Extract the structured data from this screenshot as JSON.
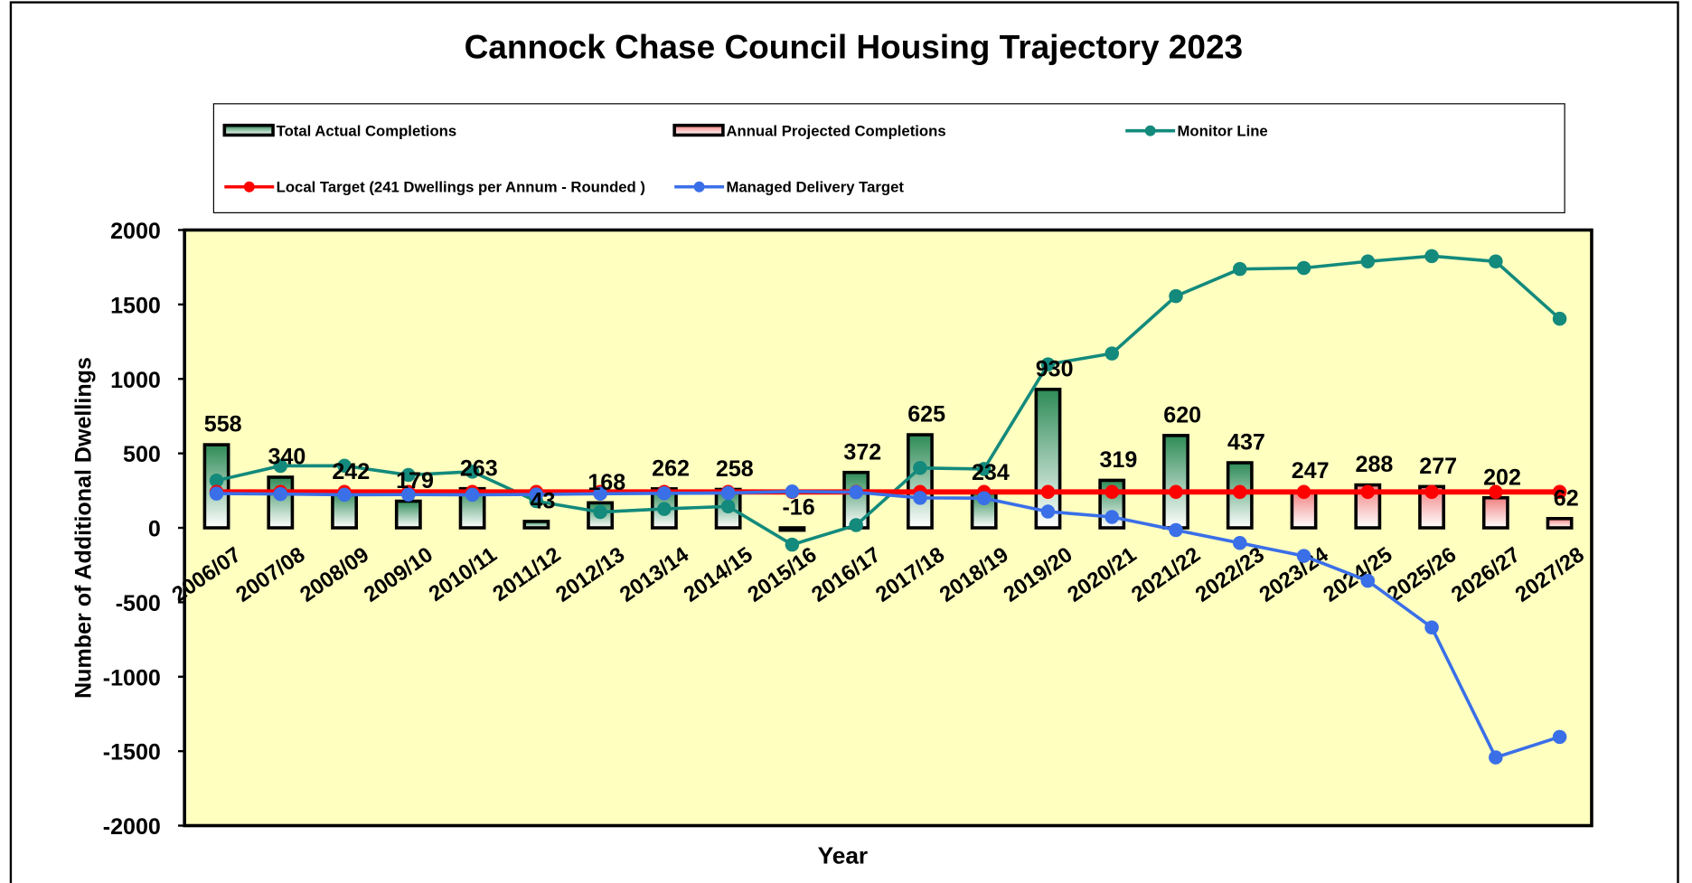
{
  "chart_data": {
    "type": "bar",
    "title": "Cannock Chase Council Housing Trajectory 2023",
    "x_label": "Year",
    "y_label": "Number of Additional Dwellings",
    "categories": [
      "2006/07",
      "2007/08",
      "2008/09",
      "2009/10",
      "2010/11",
      "2011/12",
      "2012/13",
      "2013/14",
      "2014/15",
      "2015/16",
      "2016/17",
      "2017/18",
      "2018/19",
      "2019/20",
      "2020/21",
      "2021/22",
      "2022/23",
      "2023/24",
      "2024/25",
      "2025/26",
      "2026/27",
      "2027/28"
    ],
    "ylim": [
      -2000,
      2000
    ],
    "yticks": [
      -2000,
      -1500,
      -1000,
      -500,
      0,
      500,
      1000,
      1500,
      2000
    ],
    "background": "#ffffc0",
    "series": [
      {
        "name": "Total Actual Completions",
        "type": "bar",
        "color": "#2e8b57",
        "values": [
          558,
          340,
          242,
          179,
          263,
          43,
          168,
          262,
          258,
          -16,
          372,
          625,
          234,
          930,
          319,
          620,
          437,
          null,
          null,
          null,
          null,
          null
        ]
      },
      {
        "name": "Annual Projected Completions",
        "type": "bar",
        "color": "#f08080",
        "values": [
          null,
          null,
          null,
          null,
          null,
          null,
          null,
          null,
          null,
          null,
          null,
          null,
          null,
          null,
          null,
          null,
          null,
          247,
          288,
          277,
          202,
          62
        ]
      },
      {
        "name": "Monitor Line",
        "type": "line",
        "color": "#138a7c",
        "values": [
          317,
          416,
          417,
          355,
          377,
          179,
          106,
          127,
          144,
          -113,
          18,
          402,
          395,
          1098,
          1171,
          1556,
          1738,
          1745,
          1789,
          1825,
          1789,
          1404
        ]
      },
      {
        "name": "Local Target (241 Dwellings per Annum - Rounded )",
        "type": "line",
        "color": "#ff0000",
        "values": [
          241,
          241,
          241,
          241,
          241,
          241,
          241,
          241,
          241,
          241,
          241,
          241,
          241,
          241,
          241,
          241,
          241,
          241,
          241,
          241,
          241,
          241
        ]
      },
      {
        "name": "Managed Delivery Target",
        "type": "line",
        "color": "#3a6fe8",
        "values": [
          230,
          227,
          222,
          223,
          222,
          224,
          229,
          232,
          234,
          244,
          239,
          201,
          199,
          109,
          73,
          -15,
          -102,
          -189,
          -356,
          -669,
          -1542,
          -1404
        ]
      }
    ]
  }
}
